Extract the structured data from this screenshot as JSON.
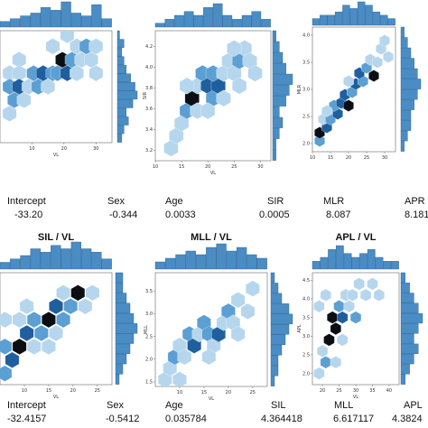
{
  "chart_data": [
    {
      "type": "hexbin",
      "title": "",
      "xlabel": "VL",
      "ylabel": "",
      "xticks": [
        "10",
        "20",
        "30"
      ],
      "yticks": [],
      "xlim": [
        0,
        35
      ],
      "ylim": [
        0,
        10
      ],
      "hexes": [
        {
          "x": 6,
          "y": 7.4,
          "level": 1
        },
        {
          "x": 3,
          "y": 6.2,
          "level": 1
        },
        {
          "x": 6,
          "y": 6.2,
          "level": 1
        },
        {
          "x": 3,
          "y": 5.0,
          "level": 2
        },
        {
          "x": 6,
          "y": 5.0,
          "level": 3
        },
        {
          "x": 9,
          "y": 5.0,
          "level": 1
        },
        {
          "x": 4.5,
          "y": 3.8,
          "level": 2
        },
        {
          "x": 7.5,
          "y": 3.8,
          "level": 1
        },
        {
          "x": 3,
          "y": 2.6,
          "level": 1
        },
        {
          "x": 10.5,
          "y": 6.2,
          "level": 2
        },
        {
          "x": 13.5,
          "y": 6.2,
          "level": 3
        },
        {
          "x": 16.5,
          "y": 6.2,
          "level": 2
        },
        {
          "x": 12,
          "y": 5.0,
          "level": 2
        },
        {
          "x": 15,
          "y": 5.0,
          "level": 1
        },
        {
          "x": 19.5,
          "y": 7.4,
          "level": 4
        },
        {
          "x": 18,
          "y": 6.2,
          "level": 2
        },
        {
          "x": 21,
          "y": 6.2,
          "level": 3
        },
        {
          "x": 22.5,
          "y": 7.4,
          "level": 2
        },
        {
          "x": 24,
          "y": 8.6,
          "level": 1
        },
        {
          "x": 27,
          "y": 8.6,
          "level": 2
        },
        {
          "x": 25.5,
          "y": 7.4,
          "level": 1
        },
        {
          "x": 28.5,
          "y": 7.4,
          "level": 1
        },
        {
          "x": 30,
          "y": 8.6,
          "level": 1
        },
        {
          "x": 30,
          "y": 6.2,
          "level": 1
        },
        {
          "x": 24,
          "y": 6.2,
          "level": 1
        },
        {
          "x": 21,
          "y": 9.6,
          "level": 1
        },
        {
          "x": 16.5,
          "y": 8.6,
          "level": 1
        }
      ],
      "top_hist": [
        2,
        3,
        4,
        5,
        7,
        6,
        9,
        5,
        4,
        8,
        3
      ],
      "right_hist": [
        2,
        3,
        5,
        4,
        7,
        9,
        8,
        6,
        4,
        3,
        2,
        3,
        1
      ]
    },
    {
      "type": "hexbin",
      "title": "",
      "xlabel": "VL",
      "ylabel": "SIR",
      "xticks": [
        "10",
        "15",
        "20",
        "25",
        "30"
      ],
      "yticks": [
        "3.2",
        "3.4",
        "3.6",
        "3.8",
        "4.0",
        "4.2"
      ],
      "xlim": [
        10,
        32
      ],
      "ylim": [
        3.1,
        4.35
      ],
      "hexes": [
        {
          "x": 13,
          "y": 3.22,
          "level": 1
        },
        {
          "x": 14,
          "y": 3.34,
          "level": 1
        },
        {
          "x": 15,
          "y": 3.46,
          "level": 1
        },
        {
          "x": 16,
          "y": 3.58,
          "level": 2
        },
        {
          "x": 17,
          "y": 3.7,
          "level": 4
        },
        {
          "x": 18,
          "y": 3.82,
          "level": 1
        },
        {
          "x": 19,
          "y": 3.94,
          "level": 2
        },
        {
          "x": 20,
          "y": 3.82,
          "level": 3
        },
        {
          "x": 21,
          "y": 3.7,
          "level": 2
        },
        {
          "x": 22,
          "y": 3.82,
          "level": 3
        },
        {
          "x": 21,
          "y": 3.94,
          "level": 2
        },
        {
          "x": 23,
          "y": 3.94,
          "level": 1
        },
        {
          "x": 24,
          "y": 4.06,
          "level": 1
        },
        {
          "x": 25,
          "y": 3.94,
          "level": 1
        },
        {
          "x": 26,
          "y": 4.06,
          "level": 2
        },
        {
          "x": 27,
          "y": 4.18,
          "level": 1
        },
        {
          "x": 25,
          "y": 4.18,
          "level": 1
        },
        {
          "x": 28,
          "y": 4.06,
          "level": 1
        },
        {
          "x": 29,
          "y": 3.94,
          "level": 1
        },
        {
          "x": 18,
          "y": 3.58,
          "level": 1
        },
        {
          "x": 20,
          "y": 3.58,
          "level": 1
        },
        {
          "x": 23,
          "y": 3.7,
          "level": 1
        },
        {
          "x": 16,
          "y": 3.82,
          "level": 1
        },
        {
          "x": 26,
          "y": 3.82,
          "level": 1
        }
      ],
      "top_hist": [
        1,
        2,
        3,
        4,
        3,
        5,
        6,
        3,
        2,
        3,
        4,
        2
      ],
      "right_hist": [
        1,
        1,
        2,
        3,
        2,
        4,
        5,
        6,
        4,
        3,
        2,
        1
      ]
    },
    {
      "type": "hexbin",
      "title": "",
      "xlabel": "",
      "ylabel": "MLR",
      "xticks": [
        "10",
        "15",
        "20",
        "25",
        "30"
      ],
      "yticks": [
        "2.0",
        "2.5",
        "3.0",
        "3.5",
        "4.0"
      ],
      "xlim": [
        10,
        33
      ],
      "ylim": [
        1.85,
        4.15
      ],
      "hexes": [
        {
          "x": 12,
          "y": 2.05,
          "level": 2
        },
        {
          "x": 12,
          "y": 2.2,
          "level": 4
        },
        {
          "x": 14,
          "y": 2.3,
          "level": 3
        },
        {
          "x": 13,
          "y": 2.45,
          "level": 1
        },
        {
          "x": 15,
          "y": 2.45,
          "level": 2
        },
        {
          "x": 17,
          "y": 2.55,
          "level": 3
        },
        {
          "x": 16,
          "y": 2.7,
          "level": 2
        },
        {
          "x": 18,
          "y": 2.75,
          "level": 3
        },
        {
          "x": 20,
          "y": 2.7,
          "level": 4
        },
        {
          "x": 19,
          "y": 2.9,
          "level": 3
        },
        {
          "x": 21,
          "y": 2.95,
          "level": 2
        },
        {
          "x": 22,
          "y": 3.1,
          "level": 3
        },
        {
          "x": 24,
          "y": 3.15,
          "level": 2
        },
        {
          "x": 23,
          "y": 3.3,
          "level": 3
        },
        {
          "x": 25,
          "y": 3.4,
          "level": 2
        },
        {
          "x": 27,
          "y": 3.25,
          "level": 4
        },
        {
          "x": 26,
          "y": 3.55,
          "level": 1
        },
        {
          "x": 28,
          "y": 3.5,
          "level": 1
        },
        {
          "x": 29,
          "y": 3.75,
          "level": 1
        },
        {
          "x": 30,
          "y": 3.9,
          "level": 1
        },
        {
          "x": 31,
          "y": 3.6,
          "level": 1
        },
        {
          "x": 14,
          "y": 2.6,
          "level": 1
        },
        {
          "x": 20,
          "y": 3.15,
          "level": 1
        }
      ],
      "top_hist": [
        2,
        3,
        3,
        4,
        6,
        5,
        7,
        6,
        4,
        3,
        2
      ],
      "right_hist": [
        1,
        2,
        3,
        3,
        4,
        5,
        6,
        5,
        4,
        3,
        2,
        1
      ]
    },
    {
      "type": "hexbin",
      "title": "SIL / VL",
      "xlabel": "VL",
      "ylabel": "",
      "xticks": [
        "10",
        "15",
        "20",
        "25"
      ],
      "yticks": [],
      "xlim": [
        5,
        28
      ],
      "ylim": [
        0,
        10
      ],
      "hexes": [
        {
          "x": 6,
          "y": 1.0,
          "level": 2
        },
        {
          "x": 7.5,
          "y": 2.2,
          "level": 3
        },
        {
          "x": 6,
          "y": 3.4,
          "level": 2
        },
        {
          "x": 9,
          "y": 3.4,
          "level": 4
        },
        {
          "x": 10.5,
          "y": 4.6,
          "level": 3
        },
        {
          "x": 12,
          "y": 5.8,
          "level": 2
        },
        {
          "x": 13.5,
          "y": 4.6,
          "level": 2
        },
        {
          "x": 15,
          "y": 5.8,
          "level": 4
        },
        {
          "x": 16.5,
          "y": 7.0,
          "level": 3
        },
        {
          "x": 18,
          "y": 5.8,
          "level": 2
        },
        {
          "x": 19.5,
          "y": 7.0,
          "level": 2
        },
        {
          "x": 21,
          "y": 8.2,
          "level": 4
        },
        {
          "x": 22.5,
          "y": 7.0,
          "level": 1
        },
        {
          "x": 24,
          "y": 8.2,
          "level": 1
        },
        {
          "x": 18,
          "y": 8.2,
          "level": 1
        },
        {
          "x": 9,
          "y": 5.8,
          "level": 1
        },
        {
          "x": 12,
          "y": 3.4,
          "level": 1
        },
        {
          "x": 15,
          "y": 3.4,
          "level": 1
        },
        {
          "x": 10.5,
          "y": 7.0,
          "level": 1
        },
        {
          "x": 6,
          "y": 5.8,
          "level": 1
        },
        {
          "x": 16.5,
          "y": 4.6,
          "level": 1
        }
      ],
      "top_hist": [
        2,
        3,
        4,
        6,
        5,
        7,
        6,
        8,
        6,
        5,
        3
      ],
      "right_hist": [
        1,
        2,
        3,
        4,
        5,
        6,
        5,
        4,
        3,
        2,
        2
      ]
    },
    {
      "type": "hexbin",
      "title": "MLL / VL",
      "xlabel": "VL",
      "ylabel": "MLL",
      "xticks": [
        "10",
        "15",
        "20",
        "25"
      ],
      "yticks": [
        "1.5",
        "2.0",
        "2.5",
        "3.0",
        "3.5"
      ],
      "xlim": [
        5,
        28
      ],
      "ylim": [
        1.4,
        3.9
      ],
      "hexes": [
        {
          "x": 7,
          "y": 1.55,
          "level": 1
        },
        {
          "x": 8,
          "y": 1.8,
          "level": 1
        },
        {
          "x": 9,
          "y": 2.05,
          "level": 2
        },
        {
          "x": 10,
          "y": 2.3,
          "level": 1
        },
        {
          "x": 11,
          "y": 2.05,
          "level": 1
        },
        {
          "x": 12,
          "y": 2.55,
          "level": 2
        },
        {
          "x": 13,
          "y": 2.3,
          "level": 3
        },
        {
          "x": 14,
          "y": 2.55,
          "level": 1
        },
        {
          "x": 15,
          "y": 2.8,
          "level": 2
        },
        {
          "x": 16,
          "y": 2.55,
          "level": 2
        },
        {
          "x": 17,
          "y": 2.3,
          "level": 1
        },
        {
          "x": 18,
          "y": 2.55,
          "level": 3
        },
        {
          "x": 19,
          "y": 2.8,
          "level": 1
        },
        {
          "x": 20,
          "y": 3.05,
          "level": 2
        },
        {
          "x": 21,
          "y": 2.8,
          "level": 1
        },
        {
          "x": 22,
          "y": 3.3,
          "level": 1
        },
        {
          "x": 24,
          "y": 3.05,
          "level": 1
        },
        {
          "x": 25,
          "y": 3.55,
          "level": 1
        },
        {
          "x": 10,
          "y": 1.55,
          "level": 1
        },
        {
          "x": 16,
          "y": 2.05,
          "level": 1
        },
        {
          "x": 22,
          "y": 2.55,
          "level": 1
        }
      ],
      "top_hist": [
        2,
        3,
        4,
        5,
        4,
        6,
        7,
        5,
        6,
        4,
        3
      ],
      "right_hist": [
        1,
        2,
        2,
        3,
        4,
        5,
        6,
        5,
        3,
        2,
        1
      ]
    },
    {
      "type": "hexbin",
      "title": "APL / VL",
      "xlabel": "VL",
      "ylabel": "APL",
      "xticks": [
        "20",
        "25",
        "30",
        "35",
        "40"
      ],
      "yticks": [
        "2.0",
        "2.5",
        "3.0",
        "3.5",
        "4.0",
        "4.5"
      ],
      "xlim": [
        17,
        43
      ],
      "ylim": [
        1.7,
        4.7
      ],
      "hexes": [
        {
          "x": 19,
          "y": 2.0,
          "level": 1
        },
        {
          "x": 21,
          "y": 2.3,
          "level": 2
        },
        {
          "x": 20,
          "y": 2.6,
          "level": 1
        },
        {
          "x": 22,
          "y": 2.9,
          "level": 4
        },
        {
          "x": 24,
          "y": 3.2,
          "level": 4
        },
        {
          "x": 23,
          "y": 3.5,
          "level": 4
        },
        {
          "x": 25,
          "y": 3.8,
          "level": 2
        },
        {
          "x": 26,
          "y": 3.5,
          "level": 3
        },
        {
          "x": 28,
          "y": 3.8,
          "level": 1
        },
        {
          "x": 27,
          "y": 4.1,
          "level": 1
        },
        {
          "x": 29,
          "y": 4.1,
          "level": 1
        },
        {
          "x": 31,
          "y": 4.4,
          "level": 1
        },
        {
          "x": 33,
          "y": 4.1,
          "level": 1
        },
        {
          "x": 35,
          "y": 4.4,
          "level": 1
        },
        {
          "x": 37,
          "y": 4.1,
          "level": 1
        },
        {
          "x": 24,
          "y": 2.3,
          "level": 1
        },
        {
          "x": 26,
          "y": 2.9,
          "level": 1
        },
        {
          "x": 30,
          "y": 3.5,
          "level": 2
        },
        {
          "x": 21,
          "y": 4.1,
          "level": 1
        },
        {
          "x": 19,
          "y": 3.8,
          "level": 1
        }
      ],
      "top_hist": [
        2,
        3,
        5,
        6,
        4,
        3,
        4,
        5,
        3,
        2,
        2
      ],
      "right_hist": [
        1,
        2,
        3,
        4,
        3,
        4,
        5,
        4,
        3,
        2,
        1
      ]
    }
  ],
  "coefficients": [
    {
      "names": [
        "Intercept",
        "Sex",
        "Age",
        "SIR",
        "MLR",
        "APR"
      ],
      "values": [
        "-33.20",
        "-0.344",
        "0.0033",
        "0.0005",
        "8.087",
        "8.181"
      ]
    },
    {
      "names": [
        "Intercept",
        "Sex",
        "Age",
        "SIL",
        "MLL",
        "APL"
      ],
      "values": [
        "-32.4157",
        "-0.5412",
        "0.035784",
        "4.364418",
        "6.617117",
        "4.3824"
      ]
    }
  ],
  "colors": {
    "level1": "#b6d6ee",
    "level2": "#5b9fd3",
    "level3": "#1f5f9e",
    "level4": "#0b0f14",
    "hist": "#4a8cc4",
    "axis": "#666666"
  }
}
